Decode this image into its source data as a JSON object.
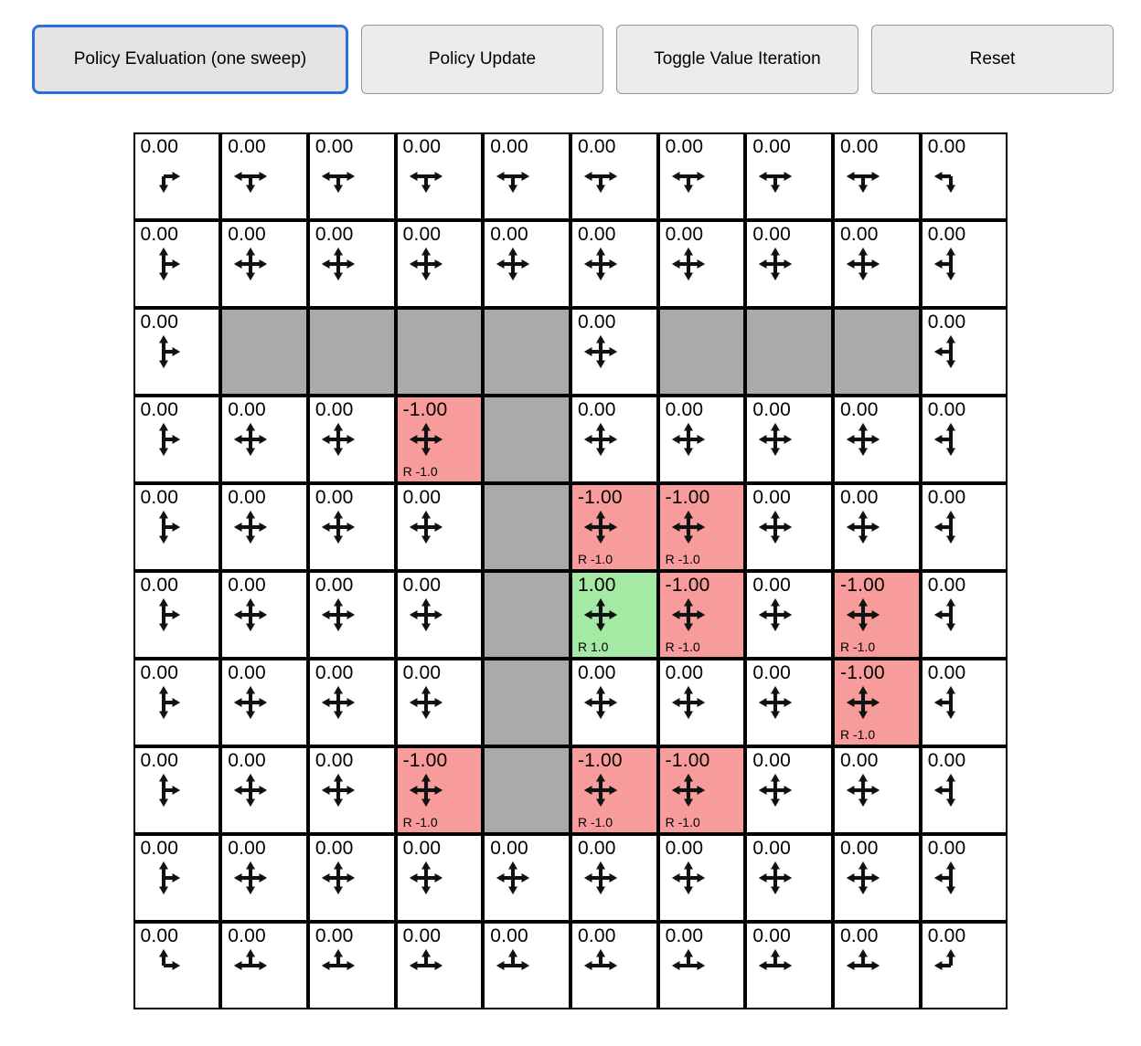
{
  "toolbar": {
    "buttons": [
      {
        "label": "Policy Evaluation (one sweep)",
        "active": true
      },
      {
        "label": "Policy Update",
        "active": false
      },
      {
        "label": "Toggle Value Iteration",
        "active": false
      },
      {
        "label": "Reset",
        "active": false
      }
    ]
  },
  "colors": {
    "reward_negative": "#f89b9b",
    "reward_positive": "#a4e9a4",
    "wall": "#aaaaaa",
    "cell_background": "#ffffff",
    "active_button_border": "#2b6fdf",
    "arrow": "#111111"
  },
  "grid": {
    "rows": [
      [
        {
          "v": "0.00",
          "d": "dr"
        },
        {
          "v": "0.00",
          "d": "dlr"
        },
        {
          "v": "0.00",
          "d": "dlr"
        },
        {
          "v": "0.00",
          "d": "dlr"
        },
        {
          "v": "0.00",
          "d": "dlr"
        },
        {
          "v": "0.00",
          "d": "dlr"
        },
        {
          "v": "0.00",
          "d": "dlr"
        },
        {
          "v": "0.00",
          "d": "dlr"
        },
        {
          "v": "0.00",
          "d": "dlr"
        },
        {
          "v": "0.00",
          "d": "dl"
        }
      ],
      [
        {
          "v": "0.00",
          "d": "udr"
        },
        {
          "v": "0.00",
          "d": "udlr"
        },
        {
          "v": "0.00",
          "d": "udlr"
        },
        {
          "v": "0.00",
          "d": "udlr"
        },
        {
          "v": "0.00",
          "d": "udlr"
        },
        {
          "v": "0.00",
          "d": "udlr"
        },
        {
          "v": "0.00",
          "d": "udlr"
        },
        {
          "v": "0.00",
          "d": "udlr"
        },
        {
          "v": "0.00",
          "d": "udlr"
        },
        {
          "v": "0.00",
          "d": "udl"
        }
      ],
      [
        {
          "v": "0.00",
          "d": "udr"
        },
        {
          "wall": true
        },
        {
          "wall": true
        },
        {
          "wall": true
        },
        {
          "wall": true
        },
        {
          "v": "0.00",
          "d": "udlr"
        },
        {
          "wall": true
        },
        {
          "wall": true
        },
        {
          "wall": true
        },
        {
          "v": "0.00",
          "d": "udl"
        }
      ],
      [
        {
          "v": "0.00",
          "d": "udr"
        },
        {
          "v": "0.00",
          "d": "udlr"
        },
        {
          "v": "0.00",
          "d": "udlr"
        },
        {
          "v": "-1.00",
          "d": "udlr",
          "bg": "neg",
          "r": "R -1.0"
        },
        {
          "wall": true
        },
        {
          "v": "0.00",
          "d": "udlr"
        },
        {
          "v": "0.00",
          "d": "udlr"
        },
        {
          "v": "0.00",
          "d": "udlr"
        },
        {
          "v": "0.00",
          "d": "udlr"
        },
        {
          "v": "0.00",
          "d": "udl"
        }
      ],
      [
        {
          "v": "0.00",
          "d": "udr"
        },
        {
          "v": "0.00",
          "d": "udlr"
        },
        {
          "v": "0.00",
          "d": "udlr"
        },
        {
          "v": "0.00",
          "d": "udlr"
        },
        {
          "wall": true
        },
        {
          "v": "-1.00",
          "d": "udlr",
          "bg": "neg",
          "r": "R -1.0"
        },
        {
          "v": "-1.00",
          "d": "udlr",
          "bg": "neg",
          "r": "R -1.0"
        },
        {
          "v": "0.00",
          "d": "udlr"
        },
        {
          "v": "0.00",
          "d": "udlr"
        },
        {
          "v": "0.00",
          "d": "udl"
        }
      ],
      [
        {
          "v": "0.00",
          "d": "udr"
        },
        {
          "v": "0.00",
          "d": "udlr"
        },
        {
          "v": "0.00",
          "d": "udlr"
        },
        {
          "v": "0.00",
          "d": "udlr"
        },
        {
          "wall": true
        },
        {
          "v": "1.00",
          "d": "udlr",
          "bg": "pos",
          "r": "R 1.0"
        },
        {
          "v": "-1.00",
          "d": "udlr",
          "bg": "neg",
          "r": "R -1.0"
        },
        {
          "v": "0.00",
          "d": "udlr"
        },
        {
          "v": "-1.00",
          "d": "udlr",
          "bg": "neg",
          "r": "R -1.0"
        },
        {
          "v": "0.00",
          "d": "udl"
        }
      ],
      [
        {
          "v": "0.00",
          "d": "udr"
        },
        {
          "v": "0.00",
          "d": "udlr"
        },
        {
          "v": "0.00",
          "d": "udlr"
        },
        {
          "v": "0.00",
          "d": "udlr"
        },
        {
          "wall": true
        },
        {
          "v": "0.00",
          "d": "udlr"
        },
        {
          "v": "0.00",
          "d": "udlr"
        },
        {
          "v": "0.00",
          "d": "udlr"
        },
        {
          "v": "-1.00",
          "d": "udlr",
          "bg": "neg",
          "r": "R -1.0"
        },
        {
          "v": "0.00",
          "d": "udl"
        }
      ],
      [
        {
          "v": "0.00",
          "d": "udr"
        },
        {
          "v": "0.00",
          "d": "udlr"
        },
        {
          "v": "0.00",
          "d": "udlr"
        },
        {
          "v": "-1.00",
          "d": "udlr",
          "bg": "neg",
          "r": "R -1.0"
        },
        {
          "wall": true
        },
        {
          "v": "-1.00",
          "d": "udlr",
          "bg": "neg",
          "r": "R -1.0"
        },
        {
          "v": "-1.00",
          "d": "udlr",
          "bg": "neg",
          "r": "R -1.0"
        },
        {
          "v": "0.00",
          "d": "udlr"
        },
        {
          "v": "0.00",
          "d": "udlr"
        },
        {
          "v": "0.00",
          "d": "udl"
        }
      ],
      [
        {
          "v": "0.00",
          "d": "udr"
        },
        {
          "v": "0.00",
          "d": "udlr"
        },
        {
          "v": "0.00",
          "d": "udlr"
        },
        {
          "v": "0.00",
          "d": "udlr"
        },
        {
          "v": "0.00",
          "d": "udlr"
        },
        {
          "v": "0.00",
          "d": "udlr"
        },
        {
          "v": "0.00",
          "d": "udlr"
        },
        {
          "v": "0.00",
          "d": "udlr"
        },
        {
          "v": "0.00",
          "d": "udlr"
        },
        {
          "v": "0.00",
          "d": "udl"
        }
      ],
      [
        {
          "v": "0.00",
          "d": "ur"
        },
        {
          "v": "0.00",
          "d": "ulr"
        },
        {
          "v": "0.00",
          "d": "ulr"
        },
        {
          "v": "0.00",
          "d": "ulr"
        },
        {
          "v": "0.00",
          "d": "ulr"
        },
        {
          "v": "0.00",
          "d": "ulr"
        },
        {
          "v": "0.00",
          "d": "ulr"
        },
        {
          "v": "0.00",
          "d": "ulr"
        },
        {
          "v": "0.00",
          "d": "ulr"
        },
        {
          "v": "0.00",
          "d": "ul"
        }
      ]
    ]
  }
}
